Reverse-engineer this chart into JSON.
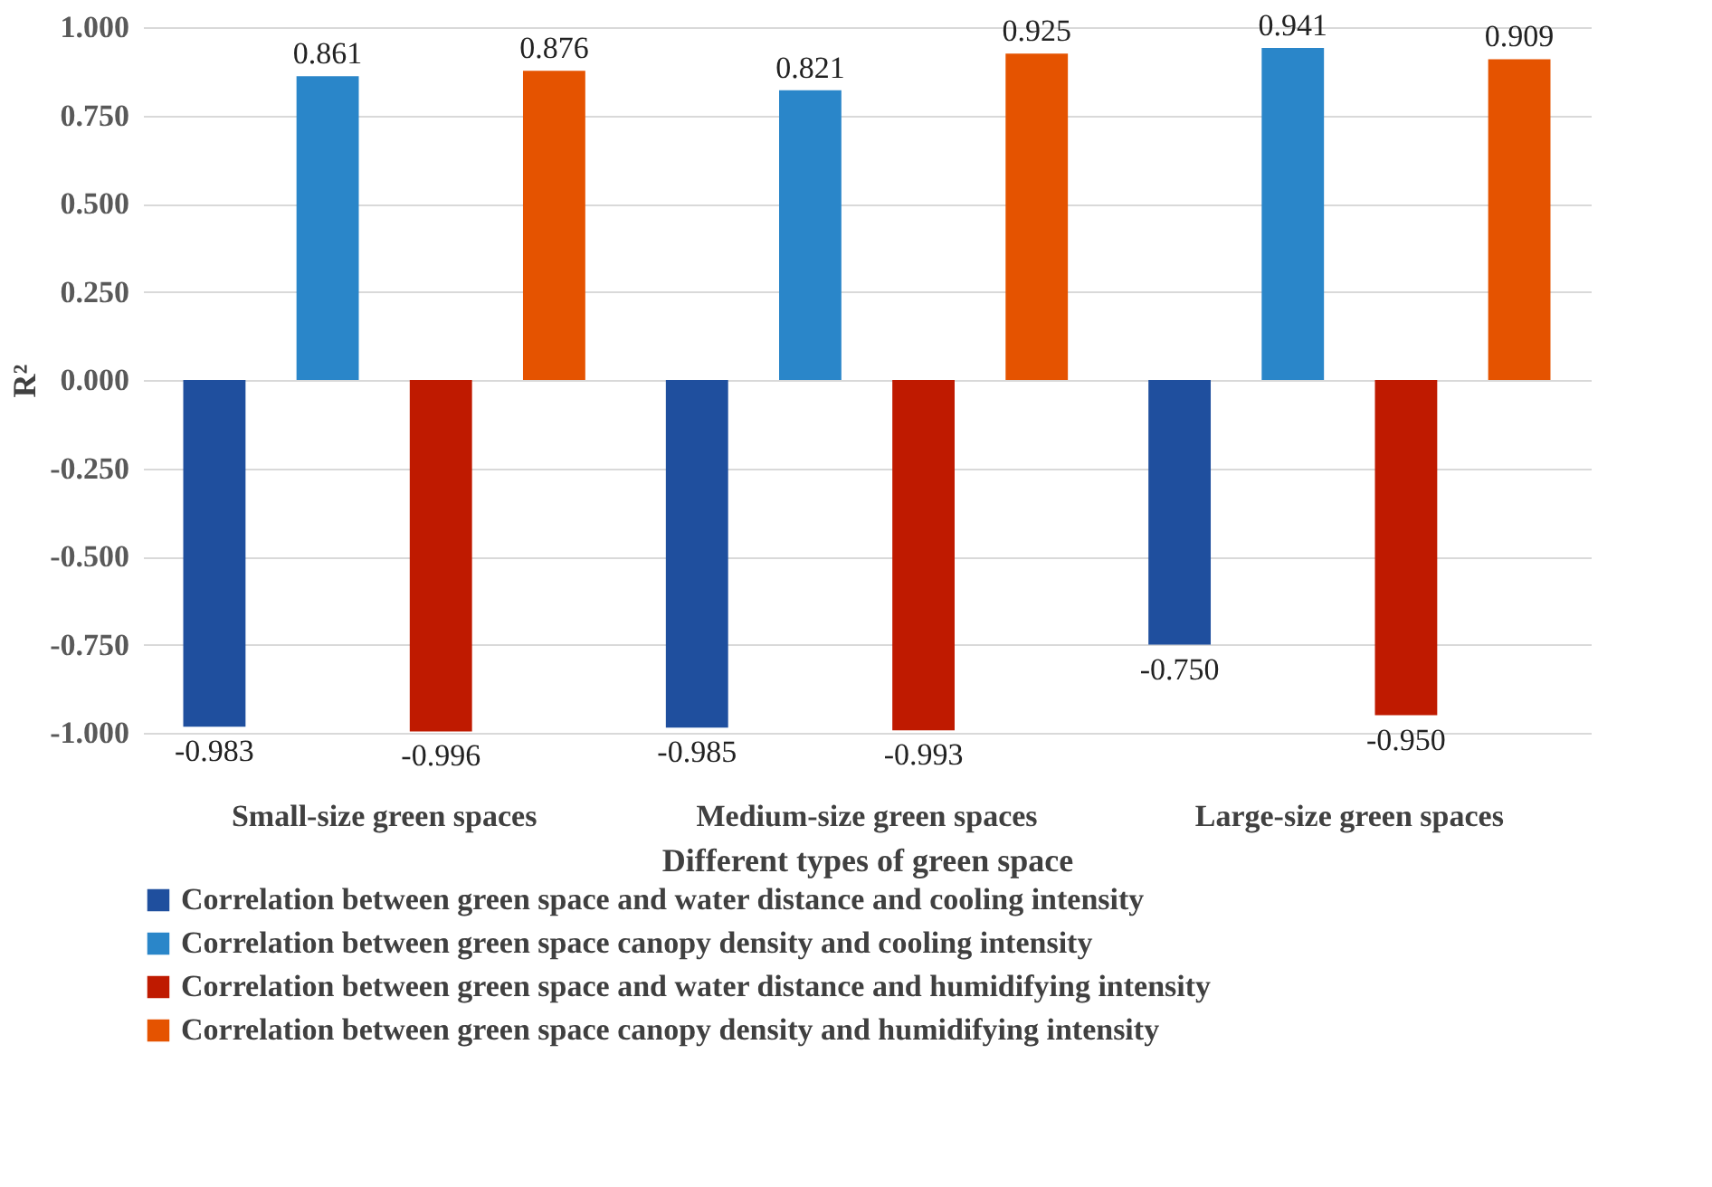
{
  "chart_data": {
    "type": "bar",
    "xlabel": "Different types of green space",
    "ylabel": "R²",
    "categories": [
      "Small-size green spaces",
      "Medium-size green spaces",
      "Large-size green spaces"
    ],
    "series": [
      {
        "name": "Correlation between green space and water distance and cooling intensity",
        "color": "#1f4f9e",
        "values": [
          -0.983,
          -0.985,
          -0.75
        ],
        "value_labels": [
          "-0.983",
          "-0.985",
          "-0.750"
        ]
      },
      {
        "name": "Correlation between green space canopy density and cooling intensity",
        "color": "#2a86c9",
        "values": [
          0.861,
          0.821,
          0.941
        ],
        "value_labels": [
          "0.861",
          "0.821",
          "0.941"
        ]
      },
      {
        "name": "Correlation between green space and water distance and humidifying intensity",
        "color": "#bf1a00",
        "values": [
          -0.996,
          -0.993,
          -0.95
        ],
        "value_labels": [
          "-0.996",
          "-0.993",
          "-0.950"
        ]
      },
      {
        "name": "Correlation between green space canopy density and humidifying intensity",
        "color": "#e55300",
        "values": [
          0.876,
          0.925,
          0.909
        ],
        "value_labels": [
          "0.876",
          "0.925",
          "0.909"
        ]
      }
    ],
    "ylim": [
      -1,
      1
    ],
    "yticks": [
      {
        "value": -1,
        "label": "-1.000"
      },
      {
        "value": -0.75,
        "label": "-0.750"
      },
      {
        "value": -0.5,
        "label": "-0.500"
      },
      {
        "value": -0.25,
        "label": "-0.250"
      },
      {
        "value": 0,
        "label": "0.000"
      },
      {
        "value": 0.25,
        "label": "0.250"
      },
      {
        "value": 0.5,
        "label": "0.500"
      },
      {
        "value": 0.75,
        "label": "0.750"
      },
      {
        "value": 1,
        "label": "1.000"
      }
    ],
    "grid": "y",
    "legend": "bottom"
  }
}
